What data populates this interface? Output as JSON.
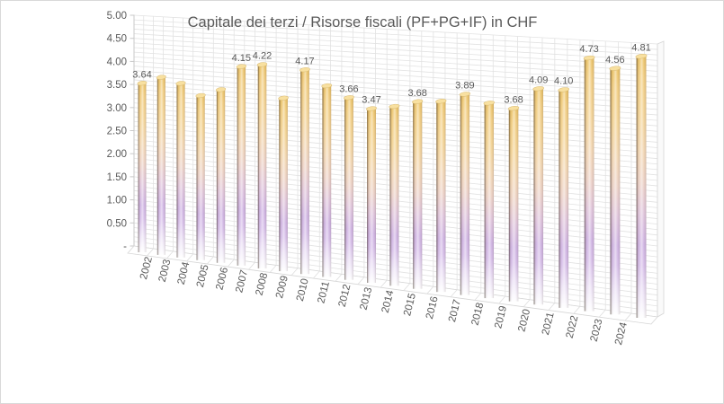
{
  "window": {
    "background": "#ffffff",
    "border_color": "#d9d9d9"
  },
  "chart_data": {
    "type": "bar",
    "style": "3d-cylinder-perspective",
    "title": "Capitale dei terzi / Risorse fiscali (PF+PG+IF) in CHF",
    "xlabel": "",
    "ylabel": "",
    "legend": "none",
    "grid": "on",
    "categories": [
      "2002",
      "2003",
      "2004",
      "2005",
      "2006",
      "2007",
      "2008",
      "2009",
      "2010",
      "2011",
      "2012",
      "2013",
      "2014",
      "2015",
      "2016",
      "2017",
      "2018",
      "2019",
      "2020",
      "2021",
      "2022",
      "2023",
      "2024"
    ],
    "values": [
      3.64,
      3.8,
      3.7,
      3.47,
      3.63,
      4.15,
      4.22,
      3.55,
      4.17,
      3.87,
      3.66,
      3.47,
      3.55,
      3.68,
      3.72,
      3.89,
      3.75,
      3.68,
      4.09,
      4.1,
      4.73,
      4.56,
      4.81
    ],
    "data_labels": [
      "3.64",
      "",
      "",
      "",
      "",
      "4.15",
      "4.22",
      "",
      "4.17",
      "",
      "3.66",
      "3.47",
      "",
      "3.68",
      "",
      "3.89",
      "",
      "3.68",
      "4.09",
      "4.10",
      "4.73",
      "4.56",
      "4.81"
    ],
    "y_axis": {
      "min": 0,
      "max": 5.0,
      "major_unit": 0.5,
      "minor_gridline_unit": 0.1,
      "tick_labels": [
        "5.00",
        "4.50",
        "4.00",
        "3.50",
        "3.00",
        "2.50",
        "2.00",
        "1.50",
        "1.00",
        "0.50",
        "-"
      ]
    },
    "colors": {
      "text": "#595959",
      "grid": "#e2e2e2",
      "wall_edge": "#c9c9c9",
      "floor_edge": "#d5d5d5",
      "cap_fill": "#f8e0a0",
      "cap_stroke": "#d9bb74",
      "bar_gradient": [
        [
          "0%",
          "#ecc363"
        ],
        [
          "8%",
          "#f2cd7e"
        ],
        [
          "22%",
          "#f4d494"
        ],
        [
          "36%",
          "#f3d7b2"
        ],
        [
          "48%",
          "#edd2c6"
        ],
        [
          "60%",
          "#e0c5dc"
        ],
        [
          "72%",
          "#cfb3e3"
        ],
        [
          "80%",
          "#d6bde9"
        ],
        [
          "90%",
          "#ebe0f5"
        ],
        [
          "100%",
          "#fefeff"
        ]
      ]
    }
  }
}
